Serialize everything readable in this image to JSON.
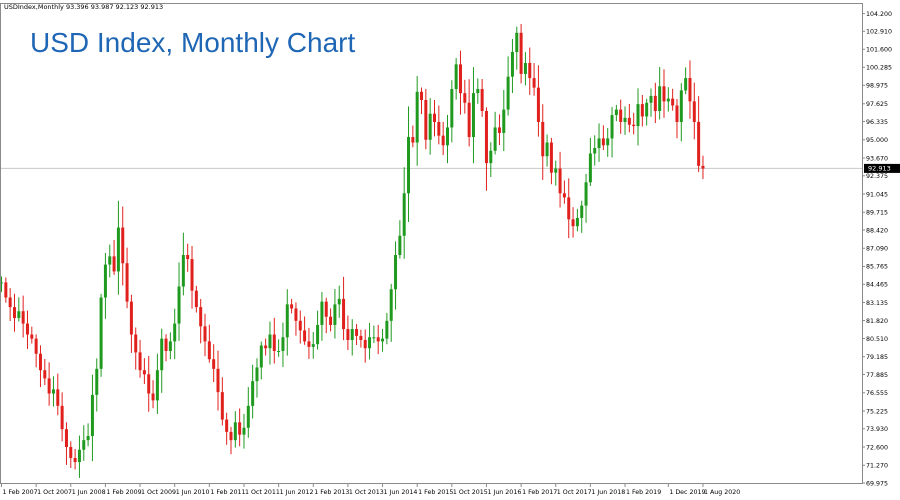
{
  "header": {
    "symbol_line": "USDIndex,Monthly  93.396 93.987 92.123 92.913",
    "title": "USD Index, Monthly Chart",
    "price_badge": "92.913"
  },
  "colors": {
    "background": "#ffffff",
    "frame": "#8a8a8a",
    "title": "#1f66b5",
    "bull": "#1f9a1f",
    "bear": "#e0201c",
    "badge_bg": "#000000",
    "badge_text": "#ffffff",
    "price_line": "#c8c8c8"
  },
  "chart_data": {
    "type": "candlestick",
    "title": "USD Index, Monthly Chart",
    "ylim": [
      69.975,
      104.9
    ],
    "y_ticks": [
      104.2,
      102.91,
      101.6,
      100.285,
      98.975,
      97.625,
      96.335,
      95.0,
      93.67,
      92.375,
      91.045,
      89.715,
      88.42,
      87.09,
      85.765,
      84.465,
      83.135,
      81.82,
      80.51,
      79.185,
      77.885,
      76.555,
      75.225,
      73.93,
      72.6,
      71.27,
      69.975
    ],
    "y_tick_labels": [
      "104.200",
      "102.910",
      "101.600",
      "100.285",
      "98.975",
      "97.625",
      "96.335",
      "95.000",
      "93.670",
      "92.375",
      "91.045",
      "89.715",
      "88.420",
      "87.090",
      "85.765",
      "84.465",
      "83.135",
      "81.820",
      "80.510",
      "79.185",
      "77.885",
      "76.555",
      "75.225",
      "73.930",
      "72.600",
      "71.270",
      "69.975"
    ],
    "x_tick_labels": [
      "1 Feb 2007",
      "1 Oct 2007",
      "1 Jun 2008",
      "1 Feb 2009",
      "1 Oct 2009",
      "1 Jun 2010",
      "1 Feb 2011",
      "1 Oct 2011",
      "1 Jun 2012",
      "1 Feb 2013",
      "1 Oct 2013",
      "1 Jun 2014",
      "1 Feb 2015",
      "1 Oct 2015",
      "1 Jun 2016",
      "1 Feb 2017",
      "1 Oct 2017",
      "1 Jun 2018",
      "1 Feb 2019",
      "1 Dec 2019",
      "1 Aug 2020"
    ],
    "x_tick_index": [
      0,
      8,
      16,
      24,
      32,
      40,
      48,
      56,
      64,
      72,
      80,
      88,
      96,
      104,
      112,
      120,
      128,
      136,
      144,
      154,
      162
    ],
    "current_price": 92.913,
    "start_close": 84.6,
    "closes": [
      84.6,
      83.5,
      82.8,
      82.0,
      82.5,
      81.6,
      80.8,
      80.5,
      79.4,
      78.2,
      77.6,
      76.5,
      76.8,
      75.6,
      73.9,
      72.6,
      71.8,
      71.5,
      72.4,
      73.1,
      73.4,
      76.4,
      78.3,
      83.5,
      85.9,
      86.5,
      85.4,
      88.6,
      86.0,
      83.2,
      80.8,
      79.5,
      78.2,
      77.9,
      76.5,
      76.0,
      78.2,
      80.5,
      79.6,
      80.3,
      81.6,
      84.3,
      86.6,
      86.3,
      84.0,
      82.8,
      81.4,
      80.3,
      79.0,
      78.3,
      76.6,
      74.6,
      73.7,
      73.1,
      74.4,
      73.5,
      74.0,
      75.6,
      77.4,
      78.4,
      80.0,
      79.8,
      80.8,
      79.6,
      79.6,
      80.6,
      83.0,
      82.7,
      81.8,
      81.1,
      80.3,
      79.9,
      80.1,
      81.5,
      83.2,
      82.1,
      81.5,
      83.0,
      83.4,
      81.2,
      80.4,
      81.2,
      80.7,
      80.4,
      79.8,
      80.6,
      80.6,
      80.3,
      80.5,
      81.8,
      84.1,
      86.6,
      88.0,
      91.1,
      95.2,
      94.8,
      98.5,
      97.9,
      95.0,
      96.9,
      96.3,
      95.3,
      94.6,
      95.9,
      98.7,
      100.5,
      98.4,
      97.7,
      95.2,
      98.4,
      98.7,
      97.1,
      93.3,
      94.2,
      95.9,
      95.5,
      97.2,
      99.6,
      101.4,
      102.8,
      99.8,
      100.6,
      99.5,
      98.8,
      96.3,
      93.8,
      94.8,
      92.6,
      92.9,
      91.1,
      90.8,
      89.2,
      88.7,
      89.3,
      90.2,
      91.9,
      94.0,
      94.4,
      95.1,
      94.6,
      95.1,
      96.8,
      97.2,
      96.3,
      96.6,
      96.1,
      96.0,
      97.6,
      96.7,
      97.7,
      98.2,
      97.1,
      98.9,
      97.8,
      98.0,
      97.5,
      96.3,
      98.6,
      99.5,
      97.8,
      96.3,
      93.1,
      92.9
    ]
  }
}
